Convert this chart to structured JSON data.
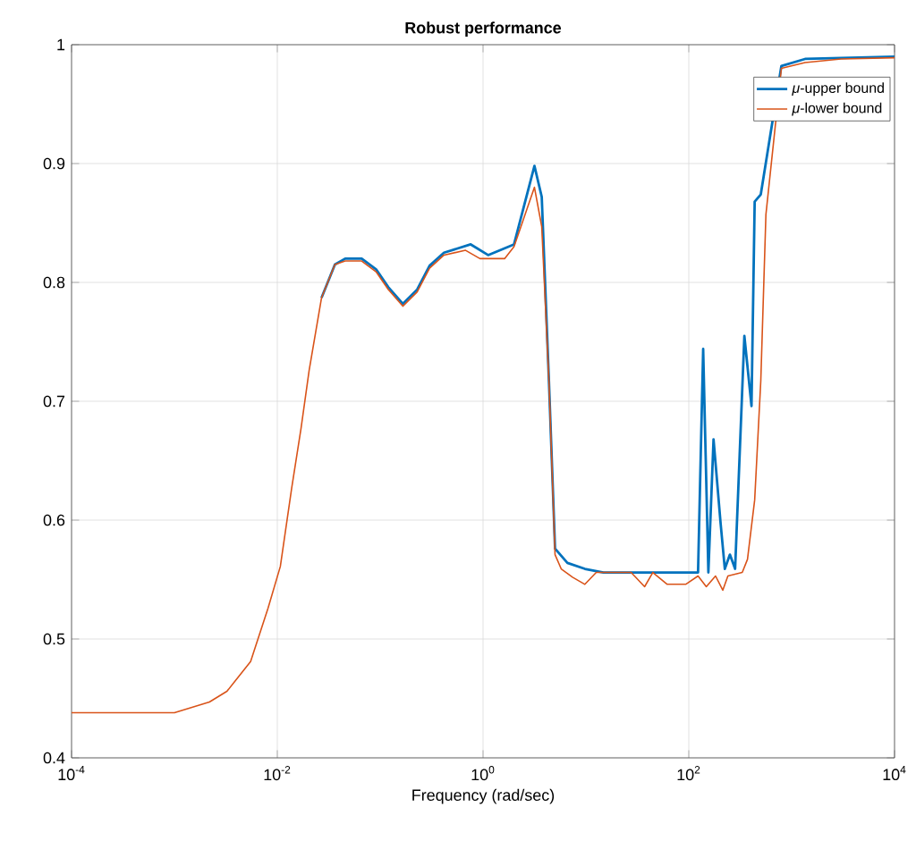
{
  "chart_data": {
    "type": "line",
    "title": "**Robust performance**",
    "xlabel": "Frequency (rad/sec)",
    "log": "x",
    "grid": true,
    "legend": "top right",
    "xlim": [
      0.0001,
      10000
    ],
    "ylim": [
      0.4,
      1
    ],
    "xticks": [
      {
        "value": 0.0001,
        "label": "10$^{-4}$"
      },
      {
        "value": 0.01,
        "label": "10$^{-2}$"
      },
      {
        "value": 1,
        "label": "10$^{0}$"
      },
      {
        "value": 100,
        "label": "10$^{2}$"
      },
      {
        "value": 10000,
        "label": "10$^{4}$"
      }
    ],
    "yticks": [
      0.4,
      0.5,
      0.6,
      0.7,
      0.8,
      0.9,
      1
    ],
    "series": [
      {
        "name": "*μ*-upper bound",
        "color": "#0072bd",
        "x": [
          0.0269,
          0.0363,
          0.0457,
          0.0661,
          0.0912,
          0.12,
          0.166,
          0.229,
          0.302,
          0.417,
          0.759,
          1.12,
          2,
          3.16,
          3.72,
          4.37,
          5.01,
          6.61,
          9.77,
          14.8,
          123,
          138,
          155,
          174,
          204,
          224,
          251,
          282,
          347,
          407,
          437,
          501,
          794,
          1349,
          10000
        ],
        "values": [
          0.787,
          0.815,
          0.82,
          0.82,
          0.811,
          0.796,
          0.782,
          0.794,
          0.814,
          0.825,
          0.832,
          0.823,
          0.832,
          0.898,
          0.872,
          0.717,
          0.576,
          0.564,
          0.559,
          0.556,
          0.556,
          0.744,
          0.556,
          0.668,
          0.597,
          0.559,
          0.571,
          0.559,
          0.755,
          0.696,
          0.868,
          0.874,
          0.982,
          0.988,
          0.99
        ]
      },
      {
        "name": "*μ*-lower bound",
        "color": "#d95319",
        "x": [
          0.0001,
          0.001,
          0.00219,
          0.00324,
          0.0055,
          0.00813,
          0.0107,
          0.0138,
          0.017,
          0.0204,
          0.0269,
          0.0363,
          0.0457,
          0.0661,
          0.0912,
          0.12,
          0.166,
          0.229,
          0.302,
          0.417,
          0.676,
          0.933,
          1.62,
          2,
          3.16,
          3.72,
          4.37,
          5.01,
          5.75,
          7.41,
          9.77,
          12.6,
          27.5,
          37.2,
          44.7,
          61.7,
          93.3,
          123,
          148,
          182,
          214,
          240,
          331,
          372,
          437,
          501,
          562,
          794,
          1349,
          3020,
          10000
        ],
        "values": [
          0.438,
          0.438,
          0.447,
          0.456,
          0.481,
          0.526,
          0.561,
          0.627,
          0.677,
          0.726,
          0.787,
          0.815,
          0.818,
          0.818,
          0.809,
          0.794,
          0.78,
          0.792,
          0.812,
          0.823,
          0.827,
          0.82,
          0.82,
          0.83,
          0.88,
          0.847,
          0.717,
          0.571,
          0.559,
          0.552,
          0.546,
          0.556,
          0.556,
          0.544,
          0.556,
          0.546,
          0.546,
          0.553,
          0.544,
          0.553,
          0.541,
          0.553,
          0.556,
          0.567,
          0.617,
          0.717,
          0.857,
          0.98,
          0.985,
          0.988,
          0.989
        ]
      }
    ]
  }
}
